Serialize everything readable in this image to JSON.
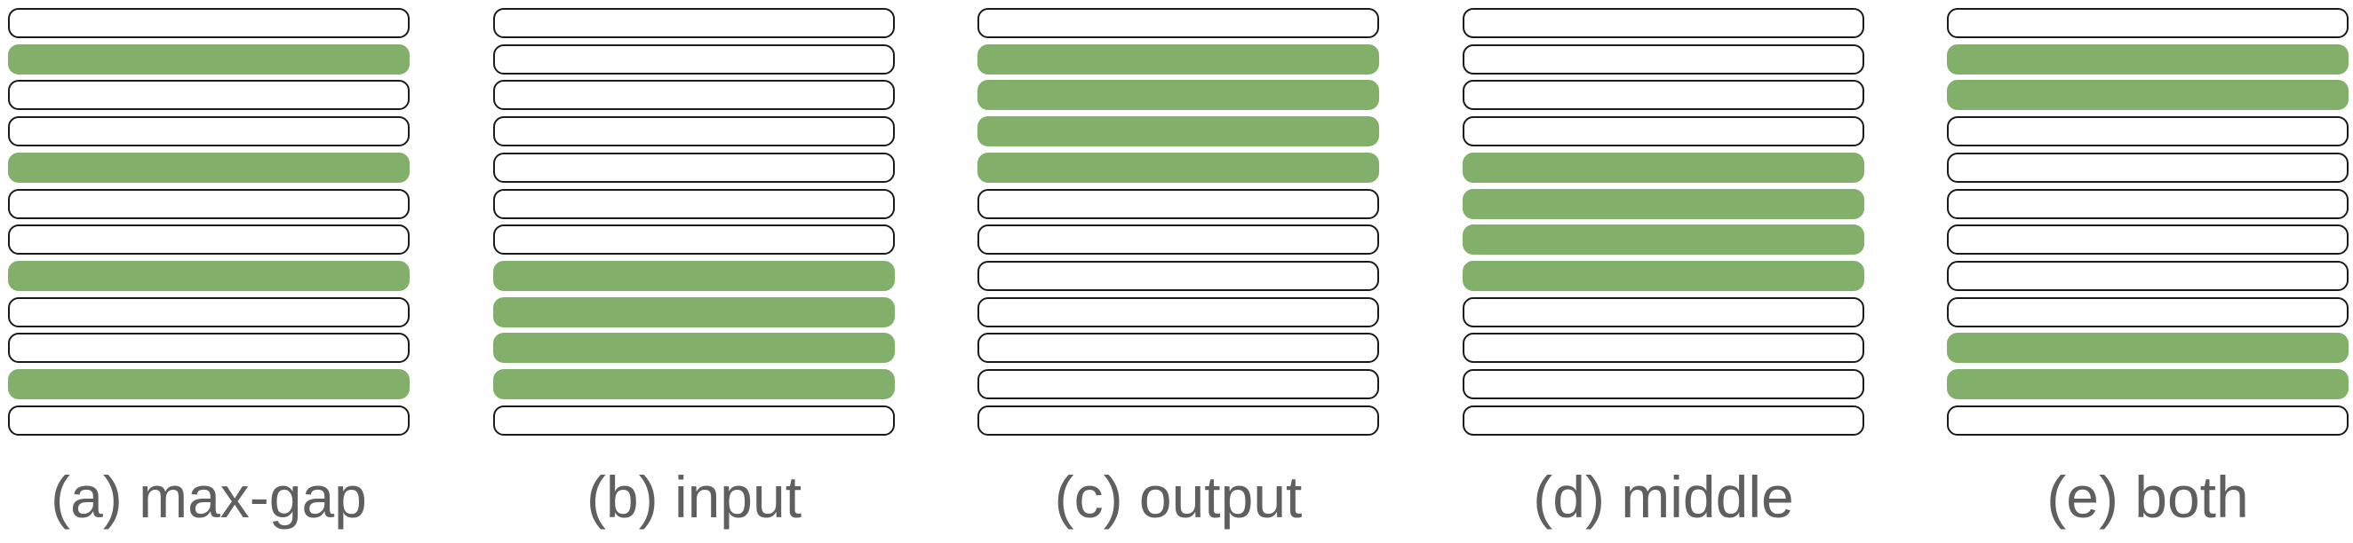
{
  "colors": {
    "selected_fill": "#82b06a",
    "unselected_fill": "#ffffff",
    "outline": "#1a1a1a",
    "caption_text": "#5f5f5f"
  },
  "bars_per_panel": 12,
  "panels": [
    {
      "id": "max-gap",
      "caption": "(a) max-gap",
      "selected_rows": [
        1,
        4,
        7,
        10
      ]
    },
    {
      "id": "input",
      "caption": "(b) input",
      "selected_rows": [
        7,
        8,
        9,
        10
      ]
    },
    {
      "id": "output",
      "caption": "(c) output",
      "selected_rows": [
        1,
        2,
        3,
        4
      ]
    },
    {
      "id": "middle",
      "caption": "(d) middle",
      "selected_rows": [
        4,
        5,
        6,
        7
      ]
    },
    {
      "id": "both",
      "caption": "(e) both",
      "selected_rows": [
        1,
        2,
        9,
        10
      ]
    }
  ]
}
